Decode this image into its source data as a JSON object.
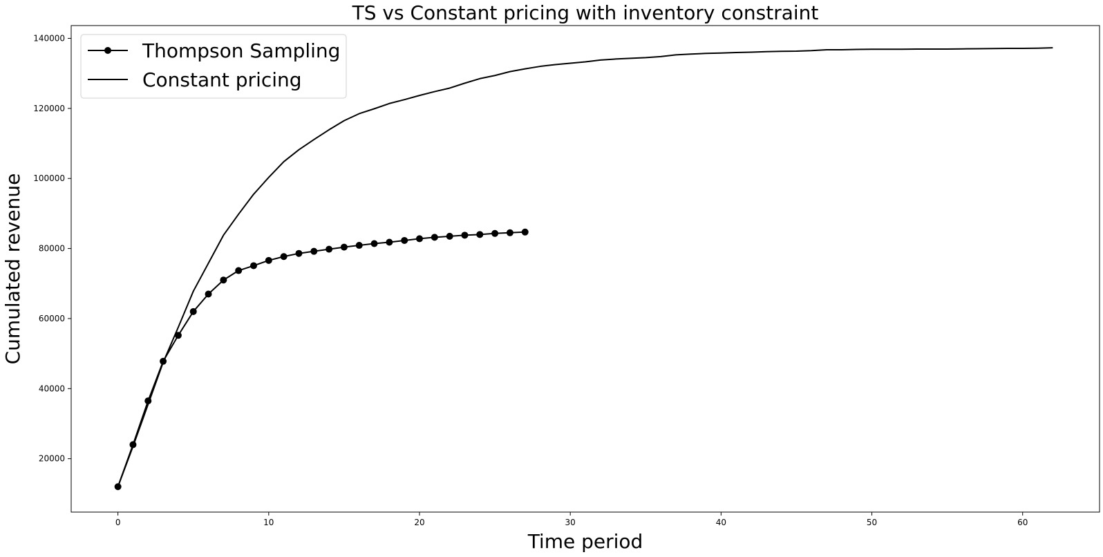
{
  "chart_data": {
    "type": "line",
    "title": "TS vs Constant pricing with inventory constraint",
    "xlabel": "Time period",
    "ylabel": "Cumulated revenue",
    "xlim": [
      -3.1,
      65.1
    ],
    "ylim": [
      4750,
      143650
    ],
    "xticks": [
      0,
      10,
      20,
      30,
      40,
      50,
      60
    ],
    "yticks": [
      20000,
      40000,
      60000,
      80000,
      100000,
      120000,
      140000
    ],
    "grid": false,
    "legend_position": "upper-left",
    "series": [
      {
        "name": "Thompson Sampling",
        "color": "#000000",
        "marker": "circle",
        "x": [
          0,
          1,
          2,
          3,
          4,
          5,
          6,
          7,
          8,
          9,
          10,
          11,
          12,
          13,
          14,
          15,
          16,
          17,
          18,
          19,
          20,
          21,
          22,
          23,
          24,
          25,
          26,
          27
        ],
        "y": [
          12000,
          24000,
          36500,
          47800,
          55200,
          62000,
          67000,
          71000,
          73700,
          75100,
          76600,
          77700,
          78600,
          79200,
          79800,
          80400,
          80900,
          81400,
          81800,
          82300,
          82800,
          83200,
          83500,
          83800,
          84000,
          84300,
          84500,
          84700
        ]
      },
      {
        "name": "Constant pricing",
        "color": "#000000",
        "marker": "none",
        "x": [
          0,
          1,
          2,
          3,
          4,
          5,
          6,
          7,
          8,
          9,
          10,
          11,
          12,
          13,
          14,
          15,
          16,
          17,
          18,
          19,
          20,
          21,
          22,
          23,
          24,
          25,
          26,
          27,
          28,
          29,
          30,
          31,
          32,
          33,
          34,
          35,
          36,
          37,
          38,
          39,
          40,
          41,
          42,
          43,
          44,
          45,
          46,
          47,
          48,
          49,
          50,
          51,
          52,
          53,
          54,
          55,
          56,
          57,
          58,
          59,
          60,
          61,
          62
        ],
        "y": [
          12000,
          23500,
          35500,
          47500,
          57500,
          67800,
          75800,
          83800,
          89800,
          95500,
          100300,
          104800,
          108200,
          111100,
          113900,
          116500,
          118500,
          119900,
          121400,
          122500,
          123700,
          124800,
          125800,
          127200,
          128500,
          129400,
          130500,
          131300,
          132000,
          132500,
          132900,
          133300,
          133800,
          134100,
          134300,
          134500,
          134800,
          135300,
          135500,
          135700,
          135800,
          135950,
          136050,
          136200,
          136300,
          136350,
          136500,
          136750,
          136750,
          136850,
          136900,
          136900,
          136900,
          136950,
          136950,
          136950,
          137000,
          137050,
          137100,
          137150,
          137150,
          137200,
          137300
        ]
      }
    ]
  }
}
